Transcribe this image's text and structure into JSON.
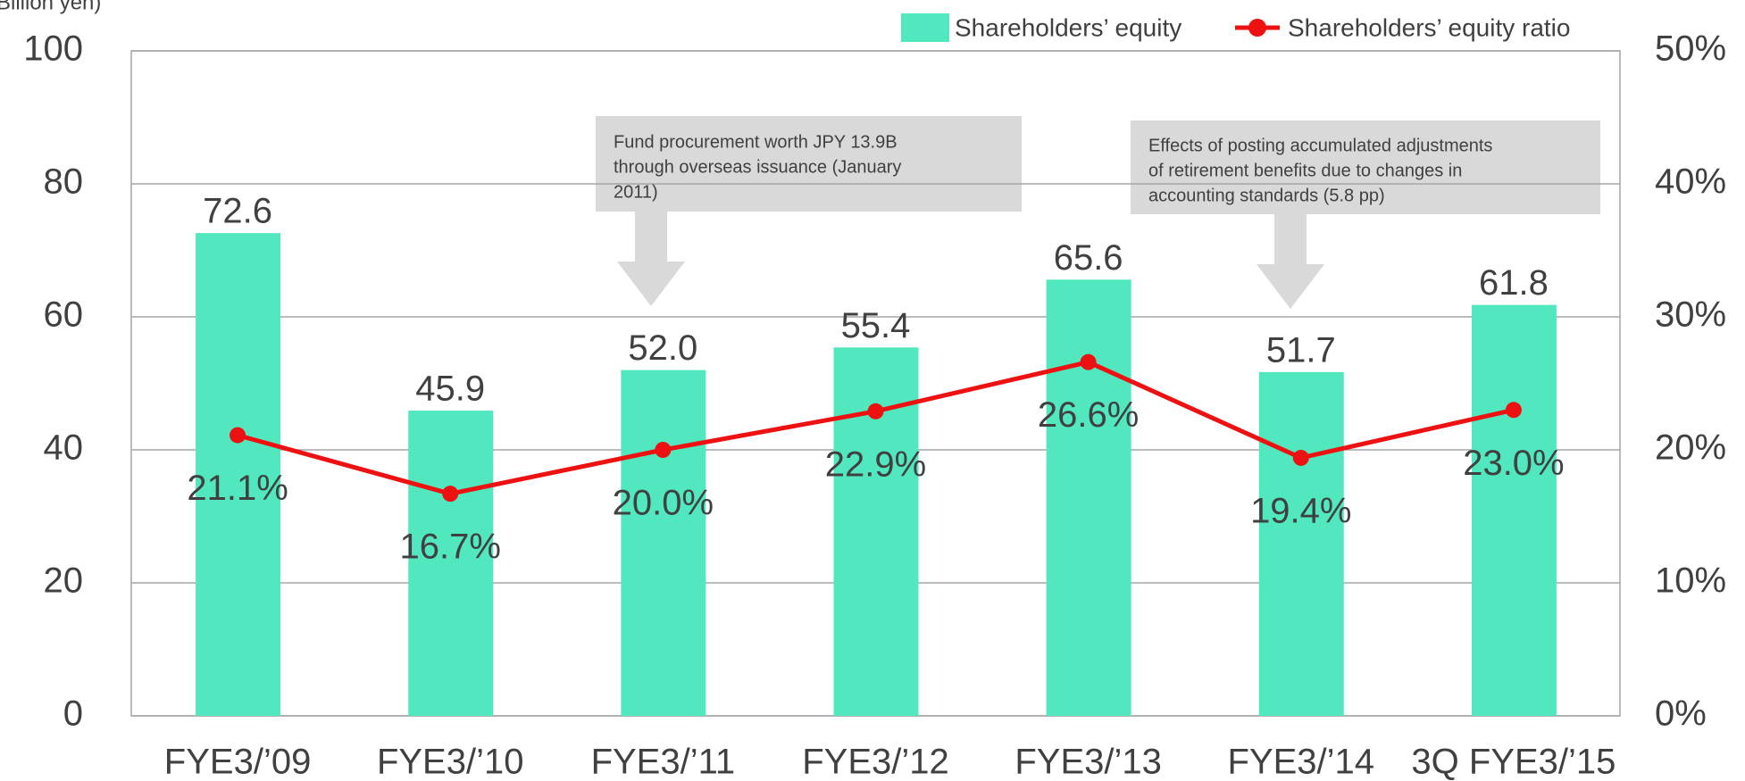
{
  "chart_data": {
    "type": "bar",
    "y_axis_label": "(Billion yen)",
    "categories": [
      "FYE3/’09",
      "FYE3/’10",
      "FYE3/’11",
      "FYE3/’12",
      "FYE3/’13",
      "FYE3/’14",
      "3Q FYE3/’15"
    ],
    "series": [
      {
        "name": "Shareholders’ equity",
        "type": "bar",
        "color": "#52e8bf",
        "values": [
          72.6,
          45.9,
          52.0,
          55.4,
          65.6,
          51.7,
          61.8
        ],
        "value_labels": [
          "72.6",
          "45.9",
          "52.0",
          "55.4",
          "65.6",
          "51.7",
          "61.8"
        ]
      },
      {
        "name": "Shareholders’ equity ratio",
        "type": "line",
        "axis": "y2",
        "color": "#ee1111",
        "values": [
          21.1,
          16.7,
          20.0,
          22.9,
          26.6,
          19.4,
          23.0
        ],
        "value_labels": [
          "21.1%",
          "16.7%",
          "20.0%",
          "22.9%",
          "26.6%",
          "19.4%",
          "23.0%"
        ]
      }
    ],
    "ylim": [
      0,
      100
    ],
    "yticks": [
      0,
      20,
      40,
      60,
      80,
      100
    ],
    "y2lim": [
      0,
      50
    ],
    "y2ticks": [
      {
        "value": 0,
        "label": "0%"
      },
      {
        "value": 10,
        "label": "10%"
      },
      {
        "value": 20,
        "label": "20%"
      },
      {
        "value": 30,
        "label": "30%"
      },
      {
        "value": 40,
        "label": "40%"
      },
      {
        "value": 50,
        "label": "50%"
      }
    ],
    "grid": true,
    "annotations": [
      {
        "lines": [
          "Fund procurement worth JPY 13.9B",
          "through overseas issuance (January",
          "2011)"
        ]
      },
      {
        "lines": [
          "Effects of posting accumulated adjustments",
          "of retirement benefits due to changes in",
          "accounting standards (5.8 pp)"
        ]
      }
    ]
  }
}
